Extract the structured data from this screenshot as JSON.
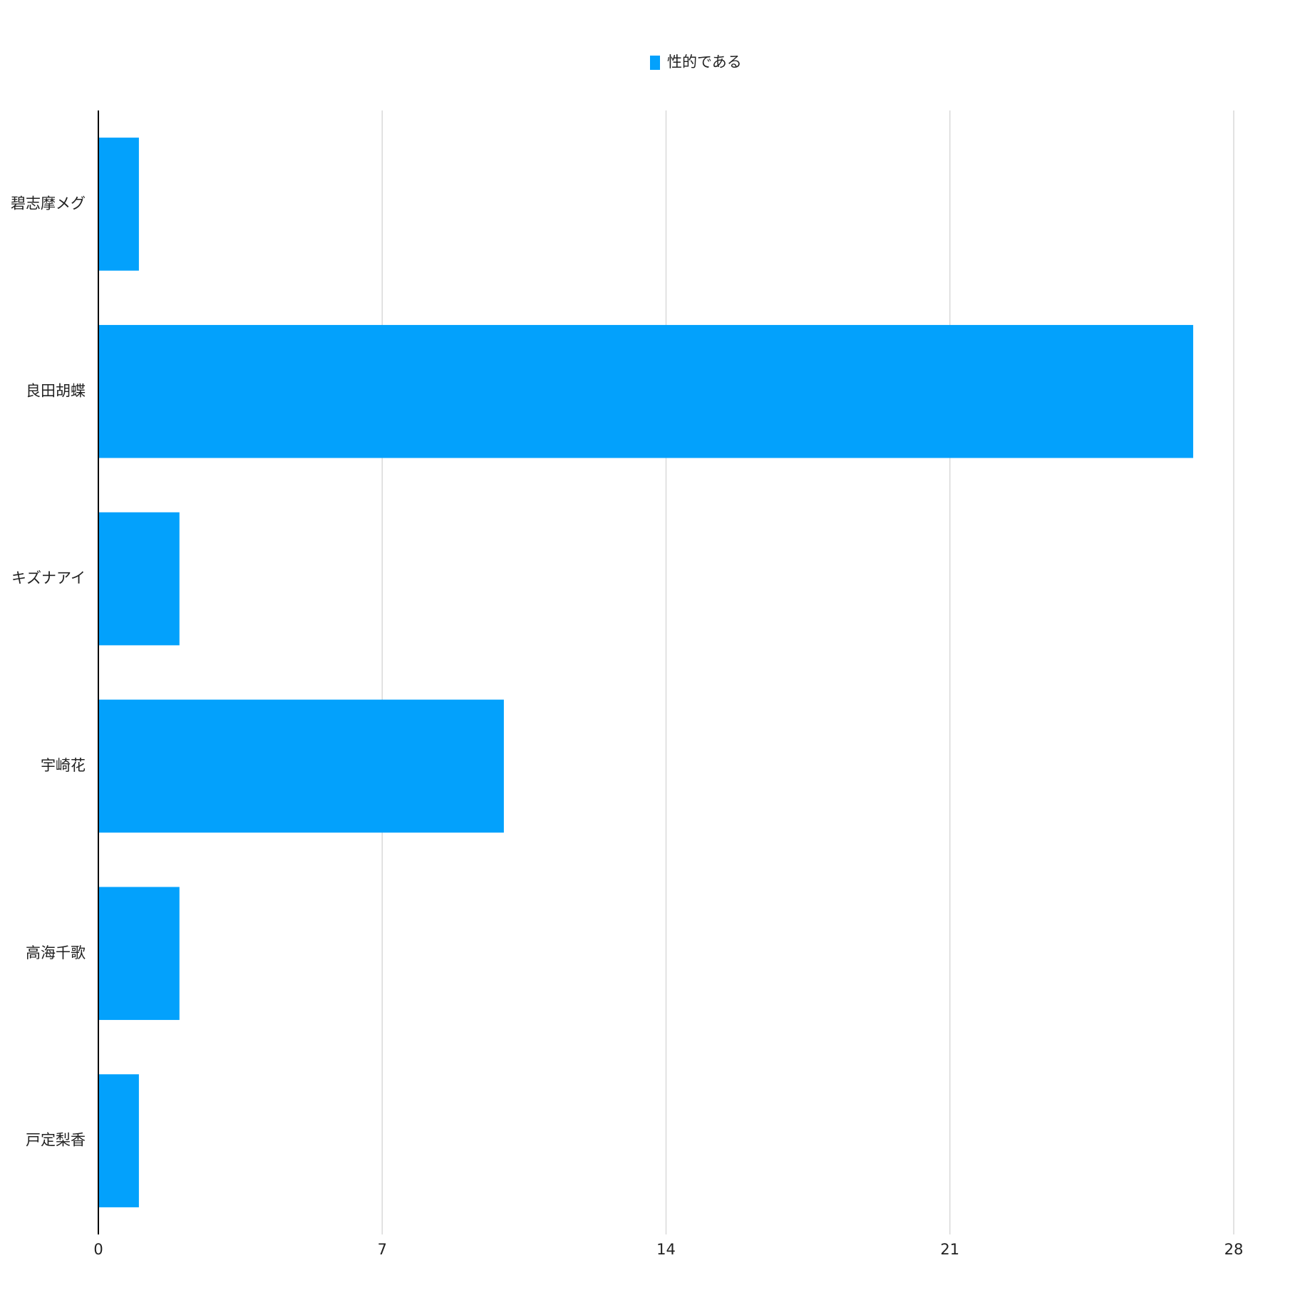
{
  "chart_data": {
    "type": "bar",
    "orientation": "horizontal",
    "categories": [
      "碧志摩メグ",
      "良田胡蝶",
      "キズナアイ",
      "宇崎花",
      "高海千歌",
      "戸定梨香"
    ],
    "series": [
      {
        "name": "性的である",
        "color": "#03a1fc",
        "values": [
          1,
          27,
          2,
          10,
          2,
          1
        ]
      }
    ],
    "xlim": [
      0,
      28
    ],
    "xticks": [
      0,
      7,
      14,
      21,
      28
    ],
    "grid": true,
    "legend": "top"
  }
}
